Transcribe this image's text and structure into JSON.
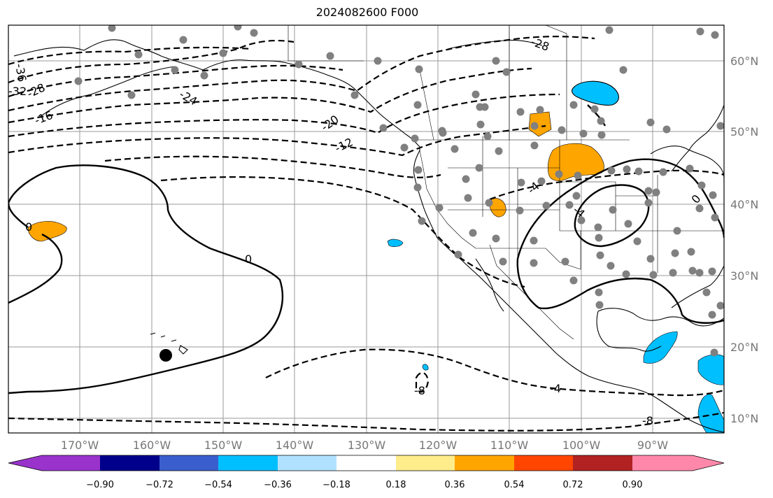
{
  "title": "2024082600 F000",
  "lat_labels": [
    "60°N",
    "50°N",
    "40°N",
    "30°N",
    "20°N",
    "10°N"
  ],
  "lon_labels": [
    "170°W",
    "160°W",
    "150°W",
    "140°W",
    "130°W",
    "120°W",
    "110°W",
    "100°W",
    "90°W"
  ],
  "contour_labels": [
    "-36",
    "-32",
    "-28",
    "-24",
    "-16",
    "-20",
    "-12",
    "-28",
    "0",
    "-4",
    "-4",
    "0",
    "0",
    "-8",
    "-4",
    "-8"
  ],
  "colorbar": {
    "colors": [
      "#9933cc",
      "#00008b",
      "#3a5fcd",
      "#00bfff",
      "#b0e2ff",
      "#ffffff",
      "#ffec8b",
      "#ffa500",
      "#ff4500",
      "#b22222",
      "#ff88aa"
    ],
    "tick_labels": [
      "−0.90",
      "−0.72",
      "−0.54",
      "−0.36",
      "−0.18",
      "0.18",
      "0.36",
      "0.54",
      "0.72",
      "0.90"
    ]
  },
  "shading_colors": {
    "positive": "#ffa500",
    "negative": "#00bfff"
  },
  "marker_color": "#808080"
}
